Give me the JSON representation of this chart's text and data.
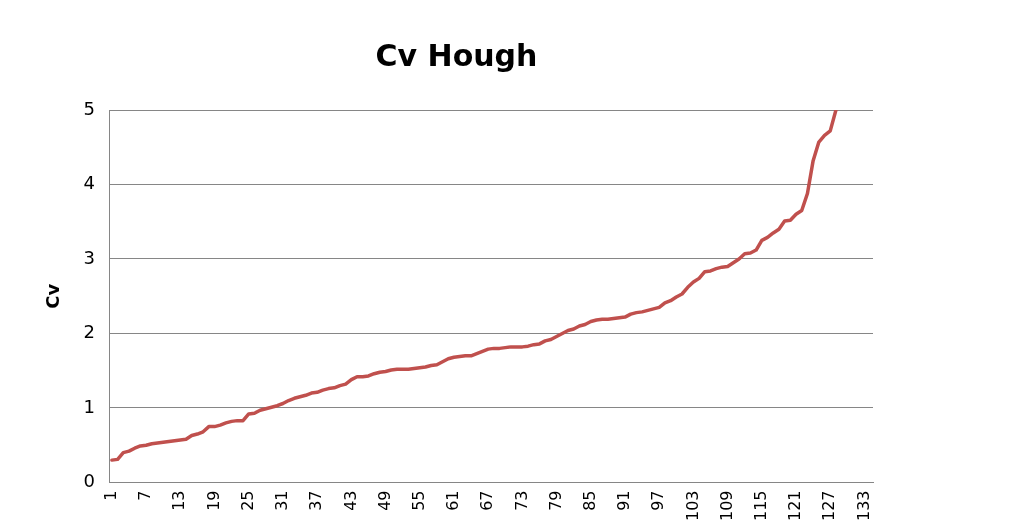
{
  "chart_data": {
    "type": "line",
    "title": "Cv Hough",
    "ylabel": "Cv",
    "categories": [
      "1",
      null,
      null,
      null,
      null,
      null,
      "7",
      null,
      null,
      null,
      null,
      null,
      "13",
      null,
      null,
      null,
      null,
      null,
      "19",
      null,
      null,
      null,
      null,
      null,
      "25",
      null,
      null,
      null,
      null,
      null,
      "31",
      null,
      null,
      null,
      null,
      null,
      "37",
      null,
      null,
      null,
      null,
      null,
      "43",
      null,
      null,
      null,
      null,
      null,
      "49",
      null,
      null,
      null,
      null,
      null,
      "55",
      null,
      null,
      null,
      null,
      null,
      "61",
      null,
      null,
      null,
      null,
      null,
      "67",
      null,
      null,
      null,
      null,
      null,
      "73",
      null,
      null,
      null,
      null,
      null,
      "79",
      null,
      null,
      null,
      null,
      null,
      "85",
      null,
      null,
      null,
      null,
      null,
      "91",
      null,
      null,
      null,
      null,
      null,
      "97",
      null,
      null,
      null,
      null,
      null,
      "103",
      null,
      null,
      null,
      null,
      null,
      "109",
      null,
      null,
      null,
      null,
      null,
      "115",
      null,
      null,
      null,
      null,
      null,
      "121",
      null,
      null,
      null,
      null,
      null,
      "127",
      null,
      null,
      null,
      null,
      null,
      "133",
      null
    ],
    "series": [
      {
        "color": "#c0504d",
        "values": [
          0.3,
          0.31,
          0.4,
          0.42,
          0.46,
          0.49,
          0.5,
          0.52,
          0.53,
          0.54,
          0.55,
          0.56,
          0.57,
          0.58,
          0.63,
          0.65,
          0.68,
          0.75,
          0.75,
          0.77,
          0.8,
          0.82,
          0.83,
          0.83,
          0.92,
          0.93,
          0.97,
          0.99,
          1.01,
          1.03,
          1.06,
          1.1,
          1.13,
          1.15,
          1.17,
          1.2,
          1.21,
          1.24,
          1.26,
          1.27,
          1.3,
          1.32,
          1.38,
          1.42,
          1.42,
          1.43,
          1.46,
          1.48,
          1.49,
          1.51,
          1.52,
          1.52,
          1.52,
          1.53,
          1.54,
          1.55,
          1.57,
          1.58,
          1.62,
          1.66,
          1.68,
          1.69,
          1.7,
          1.7,
          1.73,
          1.76,
          1.79,
          1.8,
          1.8,
          1.81,
          1.82,
          1.82,
          1.82,
          1.83,
          1.85,
          1.86,
          1.9,
          1.92,
          1.96,
          2.0,
          2.04,
          2.06,
          2.1,
          2.12,
          2.16,
          2.18,
          2.19,
          2.19,
          2.2,
          2.21,
          2.22,
          2.26,
          2.28,
          2.29,
          2.31,
          2.33,
          2.35,
          2.41,
          2.44,
          2.49,
          2.53,
          2.62,
          2.69,
          2.74,
          2.83,
          2.84,
          2.87,
          2.89,
          2.9,
          2.95,
          3.0,
          3.07,
          3.08,
          3.12,
          3.25,
          3.29,
          3.35,
          3.4,
          3.51,
          3.52,
          3.6,
          3.65,
          3.88,
          4.32,
          4.57,
          4.66,
          4.72,
          5.0,
          null,
          null,
          null,
          null,
          null,
          null
        ]
      }
    ],
    "ylim": [
      0,
      5
    ],
    "yticks": [
      0,
      1,
      2,
      3,
      4,
      5
    ],
    "grid": "y",
    "legend": false,
    "marker": "none",
    "line_style": "solid"
  }
}
